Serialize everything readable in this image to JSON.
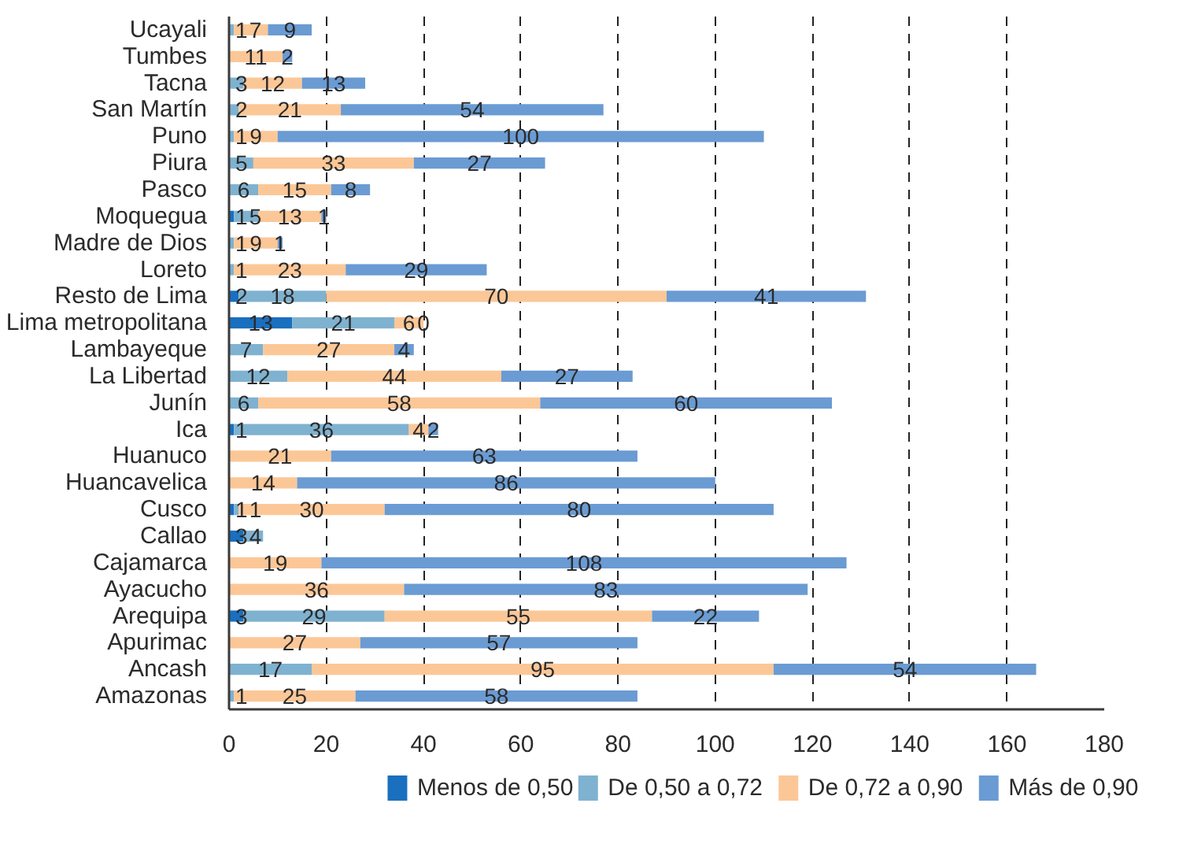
{
  "chart_data": {
    "type": "bar",
    "orientation": "horizontal",
    "stacked": true,
    "categories": [
      "Ucayali",
      "Tumbes",
      "Tacna",
      "San Martín",
      "Puno",
      "Piura",
      "Pasco",
      "Moquegua",
      "Madre de Dios",
      "Loreto",
      "Resto de Lima",
      "Lima metropolitana",
      "Lambayeque",
      "La Libertad",
      "Junín",
      "Ica",
      "Huanuco",
      "Huancavelica",
      "Cusco",
      "Callao",
      "Cajamarca",
      "Ayacucho",
      "Arequipa",
      "Apurimac",
      "Ancash",
      "Amazonas"
    ],
    "series": [
      {
        "name": "Menos de 0,50",
        "color": "#1a6fbf",
        "values": [
          null,
          null,
          null,
          null,
          null,
          null,
          null,
          1,
          null,
          null,
          2,
          13,
          null,
          null,
          null,
          1,
          null,
          null,
          1,
          3,
          null,
          null,
          3,
          null,
          null,
          null
        ]
      },
      {
        "name": "De 0,50 a 0,72",
        "color": "#7fb2d0",
        "values": [
          1,
          null,
          3,
          2,
          1,
          5,
          6,
          5,
          1,
          1,
          18,
          21,
          7,
          12,
          6,
          36,
          null,
          null,
          1,
          4,
          null,
          null,
          29,
          null,
          17,
          1
        ]
      },
      {
        "name": "De 0,72 a 0,90",
        "color": "#fcc797",
        "values": [
          7,
          11,
          12,
          21,
          9,
          33,
          15,
          13,
          9,
          23,
          70,
          6,
          27,
          44,
          58,
          4,
          21,
          14,
          30,
          null,
          19,
          36,
          55,
          27,
          95,
          25
        ]
      },
      {
        "name": "Más de 0,90",
        "color": "#6a9bd3",
        "values": [
          9,
          2,
          13,
          54,
          100,
          27,
          8,
          1,
          1,
          29,
          41,
          0,
          4,
          27,
          60,
          2,
          63,
          86,
          80,
          null,
          108,
          83,
          22,
          57,
          54,
          58
        ]
      }
    ],
    "xlim": [
      0,
      180
    ],
    "xticks": [
      0,
      20,
      40,
      60,
      80,
      100,
      120,
      140,
      160,
      180
    ],
    "grid": "x",
    "legend": "bottom",
    "data_labels": true
  }
}
